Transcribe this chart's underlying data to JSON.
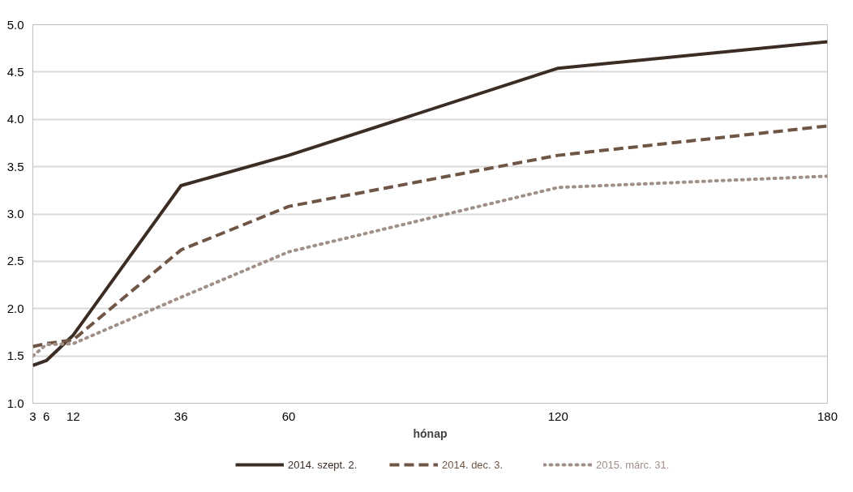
{
  "chart_data": {
    "type": "line",
    "xlabel": "hónap",
    "x": [
      3,
      6,
      12,
      36,
      60,
      120,
      180
    ],
    "series": [
      {
        "name": "2014. szept. 2.",
        "color": "#3b2c24",
        "line_style": "solid",
        "values": [
          1.4,
          1.45,
          1.72,
          3.3,
          3.62,
          4.54,
          4.82
        ]
      },
      {
        "name": "2014. dec. 3.",
        "color": "#6e5545",
        "line_style": "dashed",
        "values": [
          1.6,
          1.63,
          1.67,
          2.62,
          3.08,
          3.62,
          3.93
        ]
      },
      {
        "name": "2015. márc. 31.",
        "color": "#a09088",
        "line_style": "dotted",
        "values": [
          1.5,
          1.62,
          1.63,
          2.12,
          2.6,
          3.28,
          3.4
        ]
      }
    ],
    "xlim": [
      3,
      180
    ],
    "xticks": [
      3,
      6,
      12,
      36,
      60,
      120,
      180
    ],
    "ylim": [
      1.0,
      5.0
    ],
    "yticks": [
      {
        "value": 1,
        "label": "1.0"
      },
      {
        "value": 1.5,
        "label": "1.5"
      },
      {
        "value": 2,
        "label": "2.0"
      },
      {
        "value": 2.5,
        "label": "2.5"
      },
      {
        "value": 3,
        "label": "3.0"
      },
      {
        "value": 3.5,
        "label": "3.5"
      },
      {
        "value": 4,
        "label": "4.0"
      },
      {
        "value": 4.5,
        "label": "4.5"
      },
      {
        "value": 5,
        "label": "5.0"
      }
    ],
    "grid": "y",
    "legend": "bottom",
    "marker": "none"
  }
}
